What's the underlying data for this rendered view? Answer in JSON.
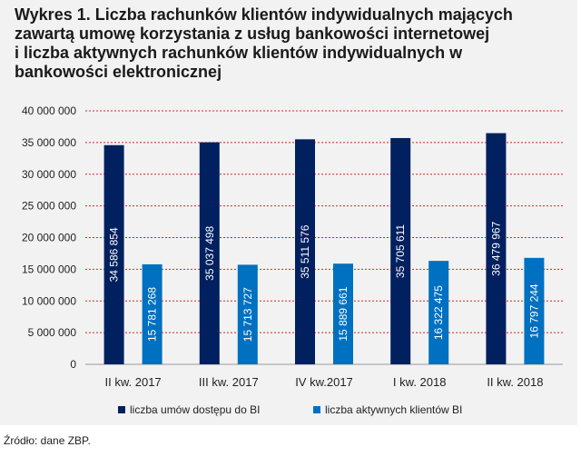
{
  "chart_data": {
    "type": "bar",
    "title_lines": [
      "Wykres 1. Liczba rachunków klientów indywidualnych mających",
      "zawartą umowę korzystania z usług bankowości internetowej",
      "i liczba aktywnych rachunków klientów indywidualnych w",
      "bankowości elektronicznej"
    ],
    "categories": [
      "II kw. 2017",
      "III kw. 2017",
      "IV kw.2017",
      "I kw. 2018",
      "II kw. 2018"
    ],
    "series": [
      {
        "name": "liczba umów dostępu do BI",
        "color": "#002060",
        "values": [
          34586854,
          35037498,
          35511576,
          35705611,
          36479967
        ],
        "labels": [
          "34 586 854",
          "35 037 498",
          "35 511 576",
          "35 705 611",
          "36 479 967"
        ]
      },
      {
        "name": "liczba aktywnych klientów BI",
        "color": "#0070c0",
        "values": [
          15781268,
          15713727,
          15889661,
          16322475,
          16797244
        ],
        "labels": [
          "15 781 268",
          "15 713 727",
          "15 889 661",
          "16 322 475",
          "16 797 244"
        ]
      }
    ],
    "ylim": [
      0,
      40000000
    ],
    "yticks": [
      0,
      5000000,
      10000000,
      15000000,
      20000000,
      25000000,
      30000000,
      35000000,
      40000000
    ],
    "ytick_labels": [
      "0",
      "5 000 000",
      "10 000 000",
      "15 000 000",
      "20 000 000",
      "25 000 000",
      "30 000 000",
      "35 000 000",
      "40 000 000"
    ],
    "gridline_color": "#e02020",
    "legend_position": "bottom"
  },
  "source": "Źródło: dane ZBP."
}
